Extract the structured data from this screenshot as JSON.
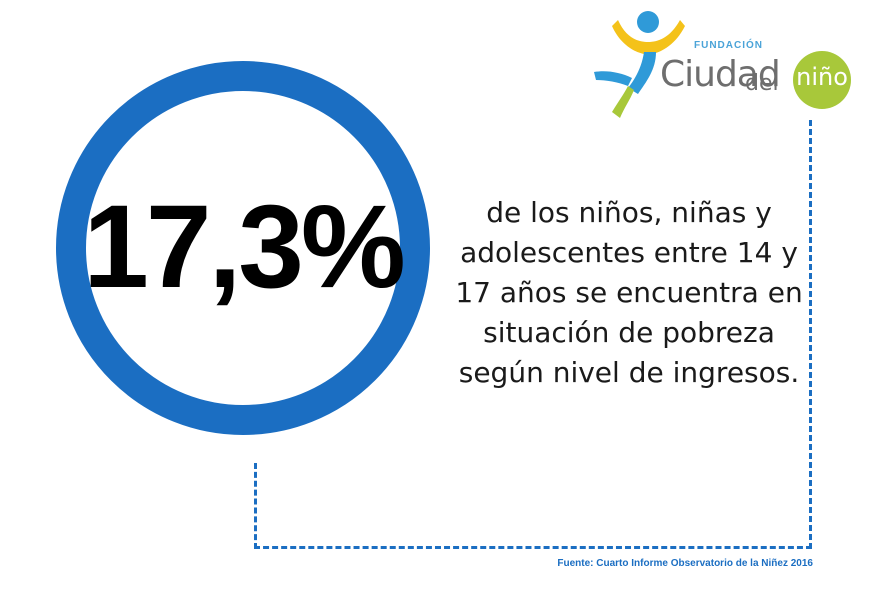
{
  "headline": {
    "value": "17,3%"
  },
  "statement": {
    "lines": [
      "de los niños, niñas y",
      "adolescentes entre 14 y",
      "17 años se encuentra en",
      "situación de pobreza",
      "según nivel de ingresos."
    ]
  },
  "source": {
    "text": "Fuente: Cuarto Informe Observatorio de la Niñez 2016"
  },
  "logo": {
    "fundacion": "FUNDACIÓN",
    "ciudad": "Ciudad",
    "del": "del",
    "nino": "niño"
  },
  "colors": {
    "ring": "#1b6ec2",
    "text": "#1a1a1a",
    "source": "#1b6ec2",
    "logo_green": "#a8c83a",
    "logo_yellow": "#f4c21a",
    "logo_blue": "#2f9ad8"
  }
}
